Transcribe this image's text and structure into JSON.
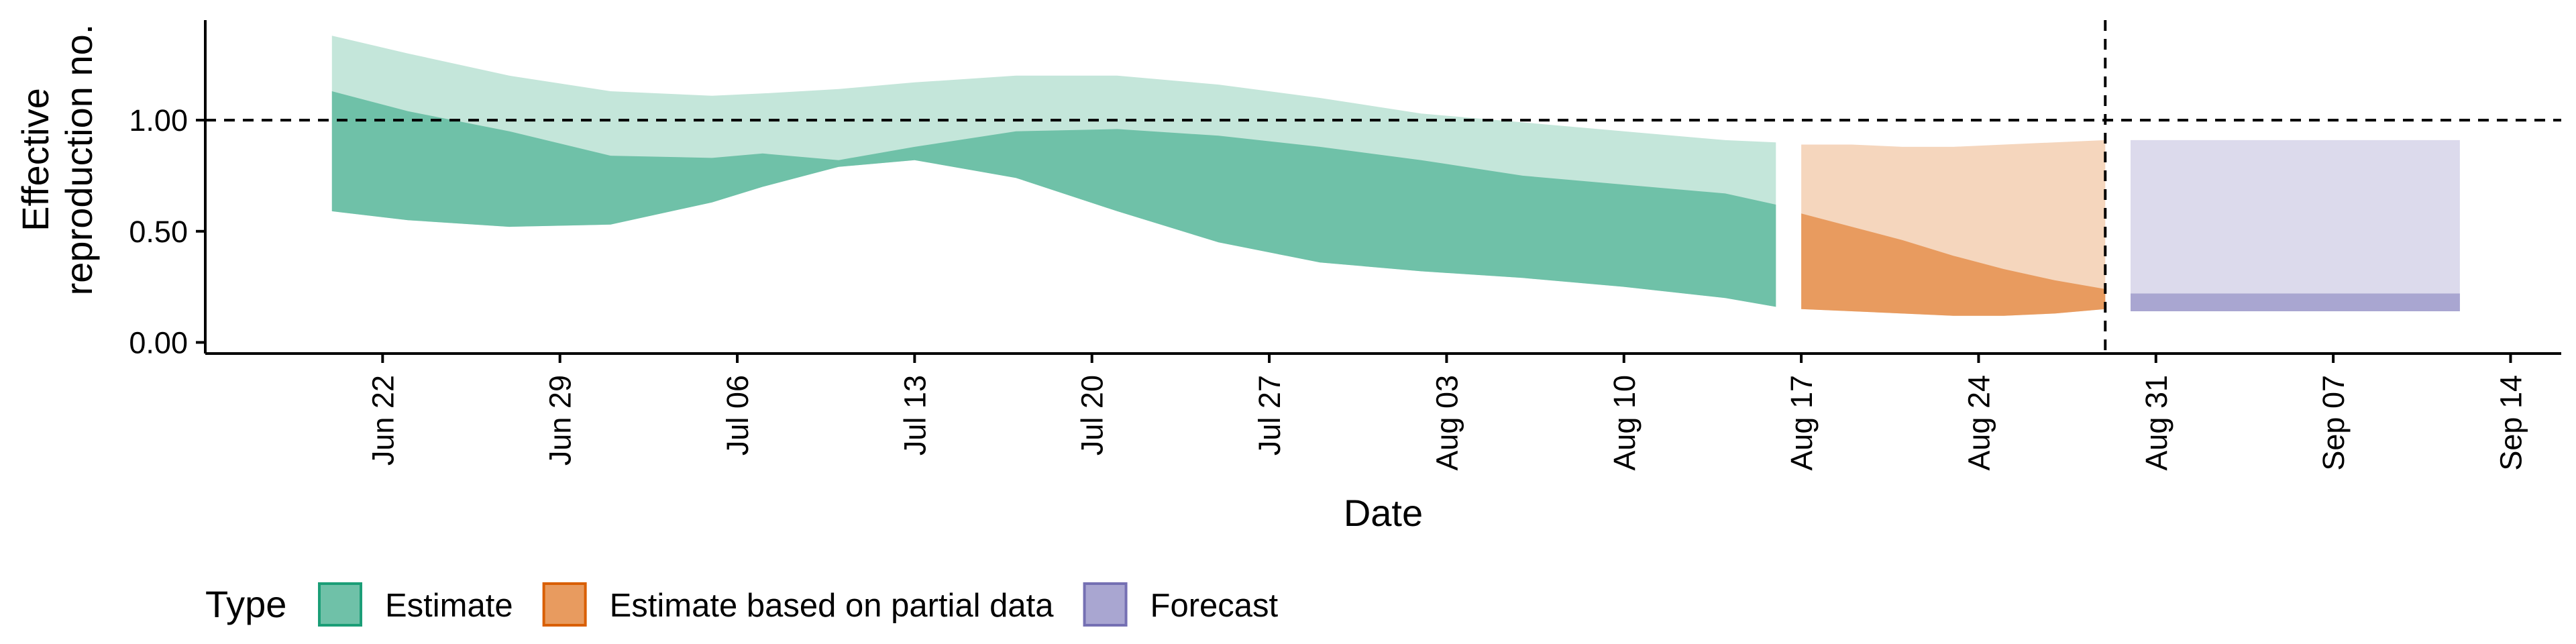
{
  "chart_data": {
    "type": "area",
    "title": "",
    "xlabel": "Date",
    "ylabel": [
      "Effective",
      "reproduction no."
    ],
    "ylim": [
      -0.05,
      1.45
    ],
    "xlim": [
      "2020-06-15",
      "2020-09-16"
    ],
    "yticks": [
      {
        "value": 0.0,
        "label": "0.00"
      },
      {
        "value": 0.5,
        "label": "0.50"
      },
      {
        "value": 1.0,
        "label": "1.00"
      }
    ],
    "xticks": [
      {
        "date": "2020-06-22",
        "label": "Jun 22"
      },
      {
        "date": "2020-06-29",
        "label": "Jun 29"
      },
      {
        "date": "2020-07-06",
        "label": "Jul 06"
      },
      {
        "date": "2020-07-13",
        "label": "Jul 13"
      },
      {
        "date": "2020-07-20",
        "label": "Jul 20"
      },
      {
        "date": "2020-07-27",
        "label": "Jul 27"
      },
      {
        "date": "2020-08-03",
        "label": "Aug 03"
      },
      {
        "date": "2020-08-10",
        "label": "Aug 10"
      },
      {
        "date": "2020-08-17",
        "label": "Aug 17"
      },
      {
        "date": "2020-08-24",
        "label": "Aug 24"
      },
      {
        "date": "2020-08-31",
        "label": "Aug 31"
      },
      {
        "date": "2020-09-07",
        "label": "Sep 07"
      },
      {
        "date": "2020-09-14",
        "label": "Sep 14"
      }
    ],
    "reference_line": {
      "y": 1.0,
      "style": "dashed"
    },
    "vertical_line": {
      "x": "2020-08-29",
      "style": "dashed"
    },
    "grid": false,
    "legend": {
      "title": "Type",
      "position": "bottom",
      "entries": [
        {
          "label": "Estimate",
          "fill": "#6FC1A8",
          "stroke": "#1B9E77"
        },
        {
          "label": "Estimate based on partial data",
          "fill": "#E89B5F",
          "stroke": "#D95F02"
        },
        {
          "label": "Forecast",
          "fill": "#A9A6D1",
          "stroke": "#7570B3"
        }
      ]
    },
    "series": [
      {
        "name": "Estimate",
        "fill": "#6FC1A8",
        "fill_outer": "#C4E6DA",
        "points": [
          {
            "x": "2020-06-20",
            "lower90": 0.59,
            "lower50": 0.59,
            "upper50": 1.13,
            "upper90": 1.38
          },
          {
            "x": "2020-06-23",
            "lower90": 0.55,
            "lower50": 0.55,
            "upper50": 1.04,
            "upper90": 1.3
          },
          {
            "x": "2020-06-27",
            "lower90": 0.52,
            "lower50": 0.52,
            "upper50": 0.95,
            "upper90": 1.2
          },
          {
            "x": "2020-07-01",
            "lower90": 0.53,
            "lower50": 0.53,
            "upper50": 0.84,
            "upper90": 1.13
          },
          {
            "x": "2020-07-05",
            "lower90": 0.63,
            "lower50": 0.63,
            "upper50": 0.83,
            "upper90": 1.11
          },
          {
            "x": "2020-07-07",
            "lower90": 0.7,
            "lower50": 0.7,
            "upper50": 0.85,
            "upper90": 1.12
          },
          {
            "x": "2020-07-10",
            "lower90": 0.79,
            "lower50": 0.79,
            "upper50": 0.82,
            "upper90": 1.14
          },
          {
            "x": "2020-07-13",
            "lower90": 0.82,
            "lower50": 0.82,
            "upper50": 0.88,
            "upper90": 1.17
          },
          {
            "x": "2020-07-17",
            "lower90": 0.74,
            "lower50": 0.74,
            "upper50": 0.95,
            "upper90": 1.2
          },
          {
            "x": "2020-07-21",
            "lower90": 0.59,
            "lower50": 0.59,
            "upper50": 0.96,
            "upper90": 1.2
          },
          {
            "x": "2020-07-25",
            "lower90": 0.45,
            "lower50": 0.45,
            "upper50": 0.93,
            "upper90": 1.16
          },
          {
            "x": "2020-07-29",
            "lower90": 0.36,
            "lower50": 0.36,
            "upper50": 0.88,
            "upper90": 1.1
          },
          {
            "x": "2020-08-02",
            "lower90": 0.32,
            "lower50": 0.32,
            "upper50": 0.82,
            "upper90": 1.03
          },
          {
            "x": "2020-08-06",
            "lower90": 0.29,
            "lower50": 0.29,
            "upper50": 0.75,
            "upper90": 0.99
          },
          {
            "x": "2020-08-10",
            "lower90": 0.25,
            "lower50": 0.25,
            "upper50": 0.71,
            "upper90": 0.95
          },
          {
            "x": "2020-08-14",
            "lower90": 0.2,
            "lower50": 0.2,
            "upper50": 0.67,
            "upper90": 0.91
          },
          {
            "x": "2020-08-16",
            "lower90": 0.16,
            "lower50": 0.16,
            "upper50": 0.62,
            "upper90": 0.9
          }
        ]
      },
      {
        "name": "Estimate based on partial data",
        "fill": "#E89B5F",
        "fill_outer": "#F5D6BD",
        "points": [
          {
            "x": "2020-08-17",
            "lower90": 0.15,
            "lower50": 0.15,
            "upper50": 0.58,
            "upper90": 0.89
          },
          {
            "x": "2020-08-19",
            "lower90": 0.14,
            "lower50": 0.14,
            "upper50": 0.52,
            "upper90": 0.89
          },
          {
            "x": "2020-08-21",
            "lower90": 0.13,
            "lower50": 0.13,
            "upper50": 0.46,
            "upper90": 0.88
          },
          {
            "x": "2020-08-23",
            "lower90": 0.12,
            "lower50": 0.12,
            "upper50": 0.39,
            "upper90": 0.88
          },
          {
            "x": "2020-08-25",
            "lower90": 0.12,
            "lower50": 0.12,
            "upper50": 0.33,
            "upper90": 0.89
          },
          {
            "x": "2020-08-27",
            "lower90": 0.13,
            "lower50": 0.13,
            "upper50": 0.28,
            "upper90": 0.9
          },
          {
            "x": "2020-08-29",
            "lower90": 0.15,
            "lower50": 0.15,
            "upper50": 0.24,
            "upper90": 0.91
          }
        ]
      },
      {
        "name": "Forecast",
        "fill": "#A9A6D1",
        "fill_outer": "#DCDAEC",
        "points": [
          {
            "x": "2020-08-30",
            "lower90": 0.14,
            "lower50": 0.14,
            "upper50": 0.22,
            "upper90": 0.91
          },
          {
            "x": "2020-09-12",
            "lower90": 0.14,
            "lower50": 0.14,
            "upper50": 0.22,
            "upper90": 0.91
          }
        ]
      }
    ]
  }
}
